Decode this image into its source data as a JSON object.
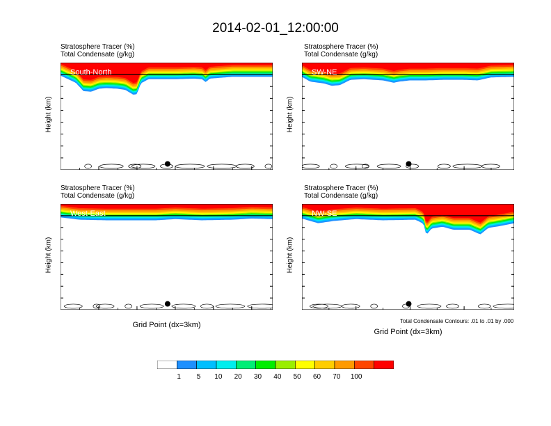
{
  "title": "2014-02-01_12:00:00",
  "panel_titles": {
    "line1": "Stratosphere Tracer   (%)",
    "line2": "Total Condensate   (g/kg)"
  },
  "ylabel": "Height (km)",
  "xlabel": "Grid Point (dx=3km)",
  "footnote": "Total Condensate Contours: .01 to .01 by .000",
  "colorbar": {
    "colors": [
      "#ffffff",
      "#1e90ff",
      "#00bfff",
      "#00eeee",
      "#00ee76",
      "#00ee00",
      "#9aee00",
      "#ffff00",
      "#ffcd00",
      "#ff9a00",
      "#ff4500",
      "#ff0000"
    ],
    "labels": [
      "1",
      "5",
      "10",
      "20",
      "30",
      "40",
      "50",
      "60",
      "70",
      "100"
    ]
  },
  "chart_data": [
    {
      "type": "heatmap",
      "name": "South-North",
      "xlim": [
        0,
        555
      ],
      "ylim": [
        0,
        18
      ],
      "xticks": [
        "0",
        "100",
        "200",
        "300",
        "400",
        "500"
      ],
      "yticks": [
        "0.0",
        "2.0",
        "4.0",
        "6.0",
        "8.0",
        "10.0",
        "12.0",
        "14.0",
        "16.0",
        "18.0"
      ],
      "tracer_layer_base_km": [
        [
          0,
          15.6
        ],
        [
          20,
          15.0
        ],
        [
          40,
          14.4
        ],
        [
          60,
          13.0
        ],
        [
          80,
          12.9
        ],
        [
          100,
          13.4
        ],
        [
          120,
          13.5
        ],
        [
          150,
          13.4
        ],
        [
          170,
          13.2
        ],
        [
          190,
          12.4
        ],
        [
          200,
          12.5
        ],
        [
          210,
          14.3
        ],
        [
          230,
          15.0
        ],
        [
          260,
          15.0
        ],
        [
          300,
          15.0
        ],
        [
          350,
          15.1
        ],
        [
          370,
          15.0
        ],
        [
          380,
          14.5
        ],
        [
          390,
          15.1
        ],
        [
          450,
          15.4
        ],
        [
          555,
          15.4
        ]
      ],
      "marker_x": 280,
      "marker_y_km": 1.0,
      "show_xlabel": false,
      "show_footnote": false
    },
    {
      "type": "heatmap",
      "name": "SW-NE",
      "xlim": [
        0,
        785
      ],
      "ylim": [
        0,
        18
      ],
      "xticks": [
        "0",
        "200",
        "400",
        "600"
      ],
      "yticks": [
        "0.0",
        "2.0",
        "4.0",
        "6.0",
        "8.0",
        "10.0",
        "12.0",
        "14.0",
        "16.0",
        "18.0"
      ],
      "tracer_layer_base_km": [
        [
          0,
          15.4
        ],
        [
          30,
          14.6
        ],
        [
          80,
          14.3
        ],
        [
          110,
          13.9
        ],
        [
          140,
          14.0
        ],
        [
          180,
          14.9
        ],
        [
          230,
          15.0
        ],
        [
          300,
          14.8
        ],
        [
          340,
          14.4
        ],
        [
          360,
          14.6
        ],
        [
          400,
          14.8
        ],
        [
          460,
          14.8
        ],
        [
          520,
          14.9
        ],
        [
          600,
          14.9
        ],
        [
          650,
          14.8
        ],
        [
          700,
          15.3
        ],
        [
          785,
          15.4
        ]
      ],
      "marker_x": 395,
      "marker_y_km": 1.0,
      "show_xlabel": false,
      "show_footnote": false
    },
    {
      "type": "heatmap",
      "name": "West-East",
      "xlim": [
        0,
        555
      ],
      "ylim": [
        0,
        18
      ],
      "xticks": [
        "0",
        "100",
        "200",
        "300",
        "400",
        "500"
      ],
      "yticks": [
        "0.0",
        "2.0",
        "4.0",
        "6.0",
        "8.0",
        "10.0",
        "12.0",
        "14.0",
        "16.0",
        "18.0"
      ],
      "tracer_layer_base_km": [
        [
          0,
          15.5
        ],
        [
          50,
          15.1
        ],
        [
          120,
          15.0
        ],
        [
          250,
          15.0
        ],
        [
          300,
          15.2
        ],
        [
          370,
          15.0
        ],
        [
          450,
          15.1
        ],
        [
          500,
          15.3
        ],
        [
          555,
          15.2
        ]
      ],
      "marker_x": 280,
      "marker_y_km": 1.0,
      "show_xlabel": true,
      "show_footnote": false
    },
    {
      "type": "heatmap",
      "name": "NW-SE",
      "xlim": [
        0,
        785
      ],
      "ylim": [
        0,
        18
      ],
      "xticks": [
        "0",
        "200",
        "400",
        "600"
      ],
      "yticks": [
        "0.0",
        "2.0",
        "4.0",
        "6.0",
        "8.0",
        "10.0",
        "12.0",
        "14.0",
        "16.0",
        "18.0"
      ],
      "tracer_layer_base_km": [
        [
          0,
          15.3
        ],
        [
          60,
          14.5
        ],
        [
          120,
          14.9
        ],
        [
          200,
          15.2
        ],
        [
          300,
          15.0
        ],
        [
          420,
          15.1
        ],
        [
          450,
          14.4
        ],
        [
          460,
          12.5
        ],
        [
          480,
          13.6
        ],
        [
          520,
          13.9
        ],
        [
          560,
          13.4
        ],
        [
          620,
          13.4
        ],
        [
          660,
          12.6
        ],
        [
          690,
          13.7
        ],
        [
          730,
          14.0
        ],
        [
          785,
          14.5
        ]
      ],
      "marker_x": 395,
      "marker_y_km": 1.0,
      "show_xlabel": true,
      "show_footnote": true
    }
  ]
}
